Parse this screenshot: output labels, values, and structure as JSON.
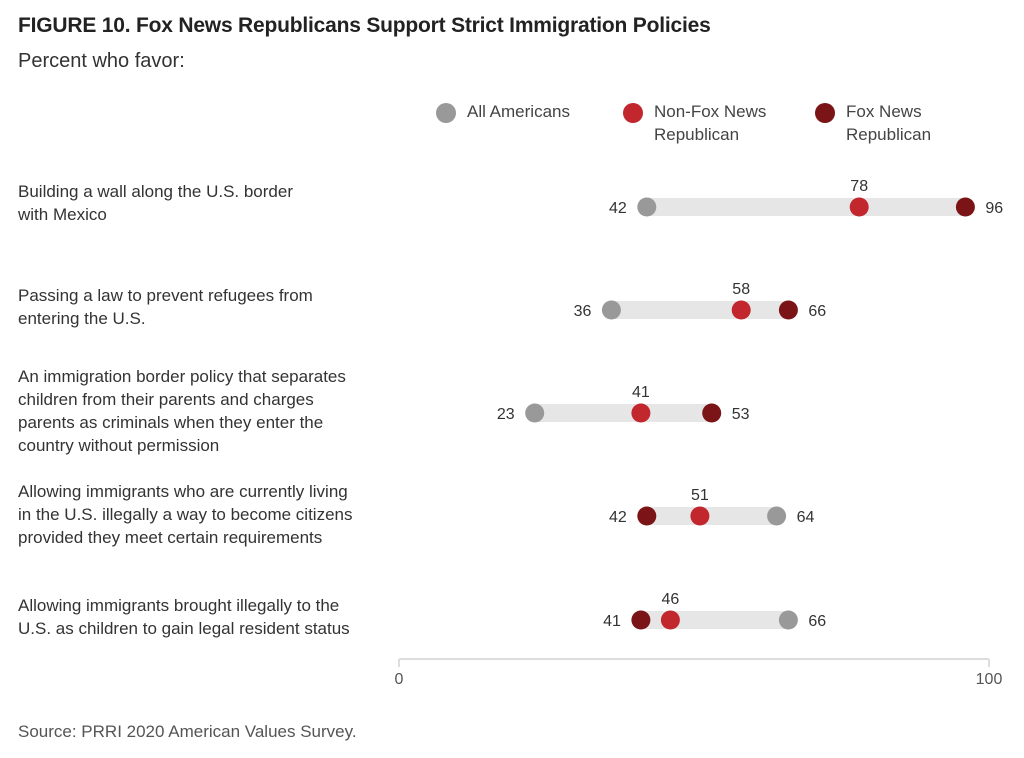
{
  "header": {
    "title": "FIGURE 10. Fox News Republicans Support Strict Immigration Policies",
    "subtitle": "Percent who favor:"
  },
  "source": "Source: PRRI 2020 American Values Survey.",
  "legend": [
    {
      "key": "all",
      "label": "All Americans",
      "color": "#999999"
    },
    {
      "key": "nonfox",
      "label": "Non-Fox News\nRepublican",
      "color": "#c1272d"
    },
    {
      "key": "fox",
      "label": "Fox News\nRepublican",
      "color": "#7b1416"
    }
  ],
  "chart_data": {
    "type": "dot-range",
    "title": "FIGURE 10. Fox News Republicans Support Strict Immigration Policies",
    "subtitle": "Percent who favor:",
    "xlim": [
      0,
      100
    ],
    "x_ticks": [
      0,
      100
    ],
    "categories": [
      [
        "Building a wall along the U.S. border",
        "with Mexico"
      ],
      [
        "Passing a law to prevent refugees from",
        "entering the U.S."
      ],
      [
        "An immigration border policy that separates",
        "children from their parents and charges",
        "parents as criminals when they enter the",
        "country without permission"
      ],
      [
        "Allowing immigrants who are currently living",
        "in the U.S. illegally a way to become citizens",
        "provided they meet certain requirements"
      ],
      [
        "Allowing immigrants brought illegally to the",
        "U.S. as children to gain legal resident status"
      ]
    ],
    "series": [
      {
        "name": "All Americans",
        "color": "#999999",
        "values": [
          42,
          36,
          23,
          64,
          66
        ]
      },
      {
        "name": "Non-Fox News Republican",
        "color": "#c1272d",
        "values": [
          78,
          58,
          41,
          51,
          46
        ]
      },
      {
        "name": "Fox News Republican",
        "color": "#7b1416",
        "values": [
          96,
          66,
          53,
          42,
          41
        ]
      }
    ]
  }
}
